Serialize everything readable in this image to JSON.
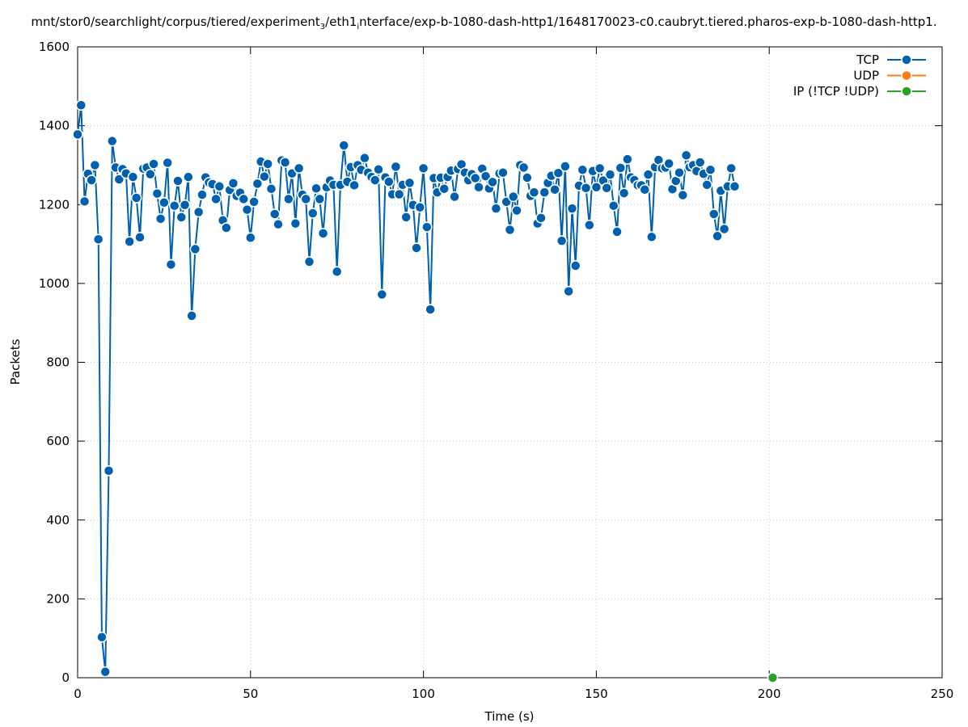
{
  "title_parts": {
    "a": "mnt/stor0/searchlight/corpus/tiered/experiment",
    "a_sub": "3",
    "b": "/eth1",
    "b_sub": "i",
    "c": "nterface/exp-b-1080-dash-http1/1648170023-c0.caubryt.tiered.pharos-exp-b-1080-dash-http1."
  },
  "chart_data": {
    "type": "line",
    "title": "mnt/stor0/searchlight/corpus/tiered/experiment_3/eth1_interface/exp-b-1080-dash-http1/1648170023-c0.caubryt.tiered.pharos-exp-b-1080-dash-http1.",
    "xlabel": "Time (s)",
    "ylabel": "Packets",
    "xlim": [
      0,
      250
    ],
    "ylim": [
      0,
      1600
    ],
    "xticks": [
      0,
      50,
      100,
      150,
      200,
      250
    ],
    "yticks": [
      0,
      200,
      400,
      600,
      800,
      1000,
      1200,
      1400,
      1600
    ],
    "grid": true,
    "legend_position": "top-right",
    "series": [
      {
        "name": "TCP",
        "color": "#0060ad",
        "points": [
          [
            0,
            1378
          ],
          [
            1,
            1452
          ],
          [
            2,
            1208
          ],
          [
            3,
            1278
          ],
          [
            4,
            1262
          ],
          [
            5,
            1300
          ],
          [
            6,
            1112
          ],
          [
            7,
            103
          ],
          [
            8,
            15
          ],
          [
            9,
            525
          ],
          [
            10,
            1361
          ],
          [
            11,
            1294
          ],
          [
            12,
            1264
          ],
          [
            13,
            1290
          ],
          [
            14,
            1279
          ],
          [
            15,
            1106
          ],
          [
            16,
            1270
          ],
          [
            17,
            1217
          ],
          [
            18,
            1117
          ],
          [
            19,
            1291
          ],
          [
            20,
            1294
          ],
          [
            21,
            1277
          ],
          [
            22,
            1303
          ],
          [
            23,
            1228
          ],
          [
            24,
            1164
          ],
          [
            25,
            1205
          ],
          [
            26,
            1306
          ],
          [
            27,
            1048
          ],
          [
            28,
            1197
          ],
          [
            29,
            1260
          ],
          [
            30,
            1168
          ],
          [
            31,
            1199
          ],
          [
            32,
            1270
          ],
          [
            33,
            918
          ],
          [
            34,
            1087
          ],
          [
            35,
            1181
          ],
          [
            36,
            1225
          ],
          [
            37,
            1269
          ],
          [
            38,
            1256
          ],
          [
            39,
            1252
          ],
          [
            40,
            1214
          ],
          [
            41,
            1246
          ],
          [
            42,
            1160
          ],
          [
            43,
            1141
          ],
          [
            44,
            1237
          ],
          [
            45,
            1254
          ],
          [
            46,
            1222
          ],
          [
            47,
            1230
          ],
          [
            48,
            1214
          ],
          [
            49,
            1187
          ],
          [
            50,
            1116
          ],
          [
            51,
            1207
          ],
          [
            52,
            1253
          ],
          [
            53,
            1309
          ],
          [
            54,
            1271
          ],
          [
            55,
            1303
          ],
          [
            56,
            1240
          ],
          [
            57,
            1176
          ],
          [
            58,
            1150
          ],
          [
            59,
            1312
          ],
          [
            60,
            1307
          ],
          [
            61,
            1214
          ],
          [
            62,
            1279
          ],
          [
            63,
            1152
          ],
          [
            64,
            1292
          ],
          [
            65,
            1225
          ],
          [
            66,
            1214
          ],
          [
            67,
            1055
          ],
          [
            68,
            1178
          ],
          [
            69,
            1241
          ],
          [
            70,
            1214
          ],
          [
            71,
            1127
          ],
          [
            72,
            1244
          ],
          [
            73,
            1261
          ],
          [
            74,
            1250
          ],
          [
            75,
            1030
          ],
          [
            76,
            1250
          ],
          [
            77,
            1350
          ],
          [
            78,
            1258
          ],
          [
            79,
            1295
          ],
          [
            80,
            1249
          ],
          [
            81,
            1300
          ],
          [
            82,
            1288
          ],
          [
            83,
            1318
          ],
          [
            84,
            1281
          ],
          [
            85,
            1270
          ],
          [
            86,
            1262
          ],
          [
            87,
            1289
          ],
          [
            88,
            972
          ],
          [
            89,
            1269
          ],
          [
            90,
            1258
          ],
          [
            91,
            1226
          ],
          [
            92,
            1296
          ],
          [
            93,
            1226
          ],
          [
            94,
            1250
          ],
          [
            95,
            1168
          ],
          [
            96,
            1255
          ],
          [
            97,
            1199
          ],
          [
            98,
            1090
          ],
          [
            99,
            1193
          ],
          [
            100,
            1292
          ],
          [
            101,
            1143
          ],
          [
            102,
            934
          ],
          [
            103,
            1267
          ],
          [
            104,
            1231
          ],
          [
            105,
            1268
          ],
          [
            106,
            1240
          ],
          [
            107,
            1270
          ],
          [
            108,
            1286
          ],
          [
            109,
            1220
          ],
          [
            110,
            1290
          ],
          [
            111,
            1302
          ],
          [
            112,
            1281
          ],
          [
            113,
            1262
          ],
          [
            114,
            1277
          ],
          [
            115,
            1267
          ],
          [
            116,
            1244
          ],
          [
            117,
            1291
          ],
          [
            118,
            1272
          ],
          [
            119,
            1241
          ],
          [
            120,
            1257
          ],
          [
            121,
            1190
          ],
          [
            122,
            1279
          ],
          [
            123,
            1281
          ],
          [
            124,
            1207
          ],
          [
            125,
            1136
          ],
          [
            126,
            1220
          ],
          [
            127,
            1185
          ],
          [
            128,
            1300
          ],
          [
            129,
            1294
          ],
          [
            130,
            1268
          ],
          [
            131,
            1222
          ],
          [
            132,
            1231
          ],
          [
            133,
            1152
          ],
          [
            134,
            1166
          ],
          [
            135,
            1231
          ],
          [
            136,
            1255
          ],
          [
            137,
            1273
          ],
          [
            138,
            1238
          ],
          [
            139,
            1280
          ],
          [
            140,
            1108
          ],
          [
            141,
            1297
          ],
          [
            142,
            980
          ],
          [
            143,
            1190
          ],
          [
            144,
            1045
          ],
          [
            145,
            1248
          ],
          [
            146,
            1288
          ],
          [
            147,
            1242
          ],
          [
            148,
            1148
          ],
          [
            149,
            1285
          ],
          [
            150,
            1244
          ],
          [
            151,
            1292
          ],
          [
            152,
            1261
          ],
          [
            153,
            1242
          ],
          [
            154,
            1276
          ],
          [
            155,
            1197
          ],
          [
            156,
            1131
          ],
          [
            157,
            1293
          ],
          [
            158,
            1229
          ],
          [
            159,
            1315
          ],
          [
            160,
            1269
          ],
          [
            161,
            1262
          ],
          [
            162,
            1249
          ],
          [
            163,
            1249
          ],
          [
            164,
            1238
          ],
          [
            165,
            1276
          ],
          [
            166,
            1118
          ],
          [
            167,
            1295
          ],
          [
            168,
            1313
          ],
          [
            169,
            1292
          ],
          [
            170,
            1294
          ],
          [
            171,
            1304
          ],
          [
            172,
            1239
          ],
          [
            173,
            1260
          ],
          [
            174,
            1281
          ],
          [
            175,
            1224
          ],
          [
            176,
            1325
          ],
          [
            177,
            1295
          ],
          [
            178,
            1300
          ],
          [
            179,
            1285
          ],
          [
            180,
            1307
          ],
          [
            181,
            1278
          ],
          [
            182,
            1250
          ],
          [
            183,
            1288
          ],
          [
            184,
            1176
          ],
          [
            185,
            1120
          ],
          [
            186,
            1235
          ],
          [
            187,
            1138
          ],
          [
            188,
            1246
          ],
          [
            189,
            1292
          ],
          [
            190,
            1246
          ]
        ]
      },
      {
        "name": "UDP",
        "color": "#ff7f0e",
        "points": []
      },
      {
        "name": "IP (!TCP  !UDP)",
        "color": "#2ca02c",
        "points": [
          [
            201,
            0
          ]
        ]
      }
    ]
  }
}
